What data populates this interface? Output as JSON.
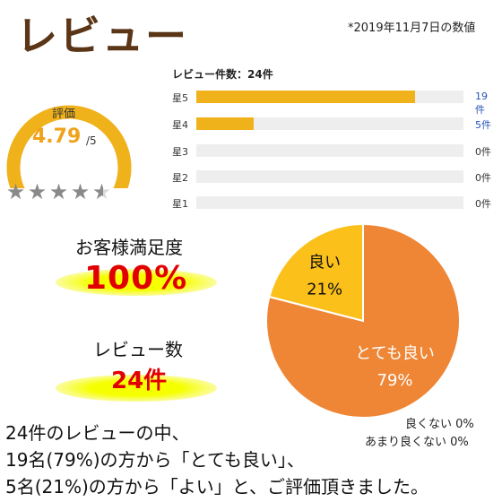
{
  "header": {
    "title": "レビュー",
    "date_note": "*2019年11月7日の数値"
  },
  "rating": {
    "label": "評価",
    "value": "4.79",
    "max": "/5",
    "score": 4.79,
    "out_of": 5,
    "stars_icon": "star-icon",
    "gauge_color": "#f0b21a"
  },
  "breakdown": {
    "title": "レビュー件数：24件",
    "rows": [
      {
        "label": "星5",
        "count_text": "19件",
        "count": 19
      },
      {
        "label": "星4",
        "count_text": "5件",
        "count": 5
      },
      {
        "label": "星3",
        "count_text": "0件",
        "count": 0
      },
      {
        "label": "星2",
        "count_text": "0件",
        "count": 0
      },
      {
        "label": "星1",
        "count_text": "0件",
        "count": 0
      }
    ],
    "total": 24,
    "bar_color": "#f0b21a"
  },
  "satisfaction": {
    "label": "お客様満足度",
    "value": "100%"
  },
  "review_count": {
    "label": "レビュー数",
    "value": "24件"
  },
  "chart_data": {
    "type": "pie",
    "title": "",
    "slices": [
      {
        "label": "とても良い",
        "value": 79,
        "value_text": "79%",
        "color": "#ee8636"
      },
      {
        "label": "良い",
        "value": 21,
        "value_text": "21%",
        "color": "#fbc01a"
      },
      {
        "label": "良くない",
        "value": 0,
        "value_text": "0%"
      },
      {
        "label": "あまり良くない",
        "value": 0,
        "value_text": "0%"
      }
    ]
  },
  "legend": {
    "not_good": "良くない  0%",
    "not_very_good": "あまり良くない 0%"
  },
  "summary": {
    "line1": "24件のレビューの中、",
    "line2": "19名(79%)の方から「とても良い」、",
    "line3": "5名(21%)の方から「よい」と、ご評価頂きました。"
  }
}
